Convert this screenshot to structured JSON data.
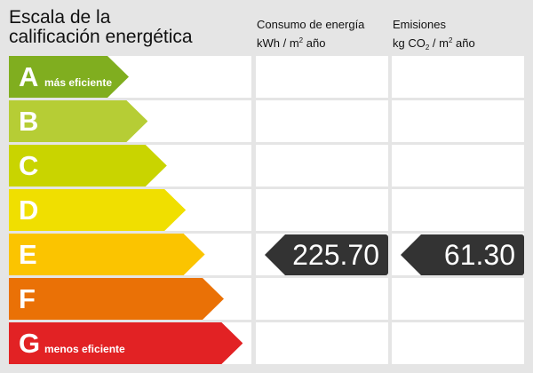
{
  "title": {
    "line1": "Escala de la",
    "line2": "calificación energética"
  },
  "columns": {
    "consumo": {
      "line1": "Consumo de energía",
      "unit_a": "kWh / m",
      "unit_sup": "2",
      "unit_b": " año"
    },
    "emisiones": {
      "line1": "Emisiones",
      "unit_a": "kg CO",
      "unit_sub": "2",
      "unit_b": " / m",
      "unit_sup": "2",
      "unit_c": " año"
    }
  },
  "ratings": [
    {
      "letter": "A",
      "label": "más eficiente",
      "color": "#80ae1f"
    },
    {
      "letter": "B",
      "label": "",
      "color": "#b6cd35"
    },
    {
      "letter": "C",
      "label": "",
      "color": "#c9d400"
    },
    {
      "letter": "D",
      "label": "",
      "color": "#f0df00"
    },
    {
      "letter": "E",
      "label": "",
      "color": "#fbc400"
    },
    {
      "letter": "F",
      "label": "",
      "color": "#ea7106"
    },
    {
      "letter": "G",
      "label": "menos eficiente",
      "color": "#e22224"
    }
  ],
  "result": {
    "rating": "E",
    "consumo": "225.70",
    "emisiones": "61.30",
    "badge_color": "#333333"
  }
}
